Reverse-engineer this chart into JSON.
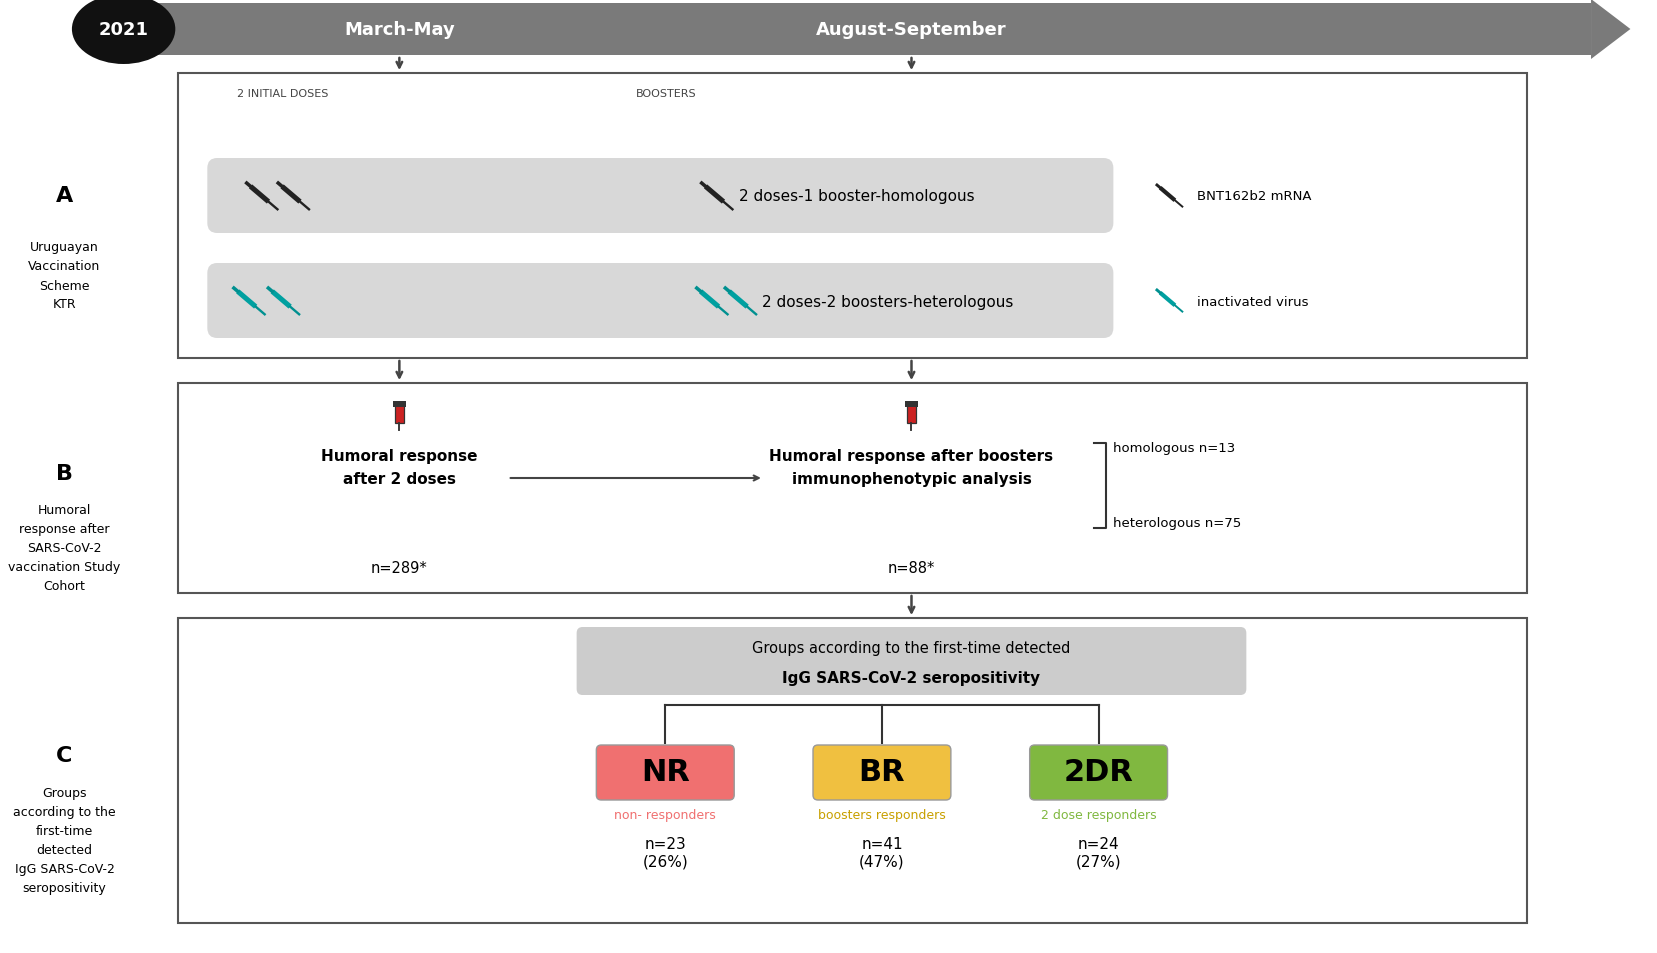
{
  "bg_color": "#ffffff",
  "year_label": "2021",
  "timeline_label1": "March-May",
  "timeline_label2": "August-September",
  "timeline_color": "#7a7a7a",
  "section_A_label": "A",
  "section_A_title": "Uruguayan\nVaccination\nScheme\nKTR",
  "section_B_label": "B",
  "section_B_title": "Humoral\nresponse after\nSARS-CoV-2\nvaccination Study\nCohort",
  "section_C_label": "C",
  "section_C_title": "Groups\naccording to the\nfirst-time\ndetected\nIgG SARS-CoV-2\nseropositivity",
  "homologous_text": "2 doses-1 booster-homologous",
  "heterologous_text": "2 doses-2 boosters-heterologous",
  "legend_line1": "BNT162b2 mRNA",
  "legend_line2": "inactivated virus",
  "doses_label": "2 INITIAL DOSES",
  "boosters_label": "BOOSTERS",
  "humoral_2doses_line1": "Humoral response",
  "humoral_2doses_line2": "after 2 doses",
  "humoral_2doses_n": "n=289*",
  "humoral_boosters_line1": "Humoral response after boosters",
  "humoral_boosters_line2": "immunophenotypic analysis",
  "humoral_boosters_n": "n=88*",
  "homologous_n": "homologous n=13",
  "heterologous_n": "heterologous n=75",
  "groups_box_line1": "Groups according to the first-time detected",
  "groups_box_line2": "IgG SARS-CoV-2 seropositivity",
  "groups_box_bg": "#cccccc",
  "NR_color": "#f07070",
  "BR_color": "#f0c040",
  "DR_color": "#80b840",
  "NR_label": "NR",
  "BR_label": "BR",
  "DR_label": "2DR",
  "NR_sublabel": "non- responders",
  "BR_sublabel": "boosters responders",
  "DR_sublabel": "2 dose responders",
  "NR_n1": "n=23",
  "NR_n2": "(26%)",
  "BR_n1": "n=41",
  "BR_n2": "(47%)",
  "DR_n1": "n=24",
  "DR_n2": "(27%)"
}
